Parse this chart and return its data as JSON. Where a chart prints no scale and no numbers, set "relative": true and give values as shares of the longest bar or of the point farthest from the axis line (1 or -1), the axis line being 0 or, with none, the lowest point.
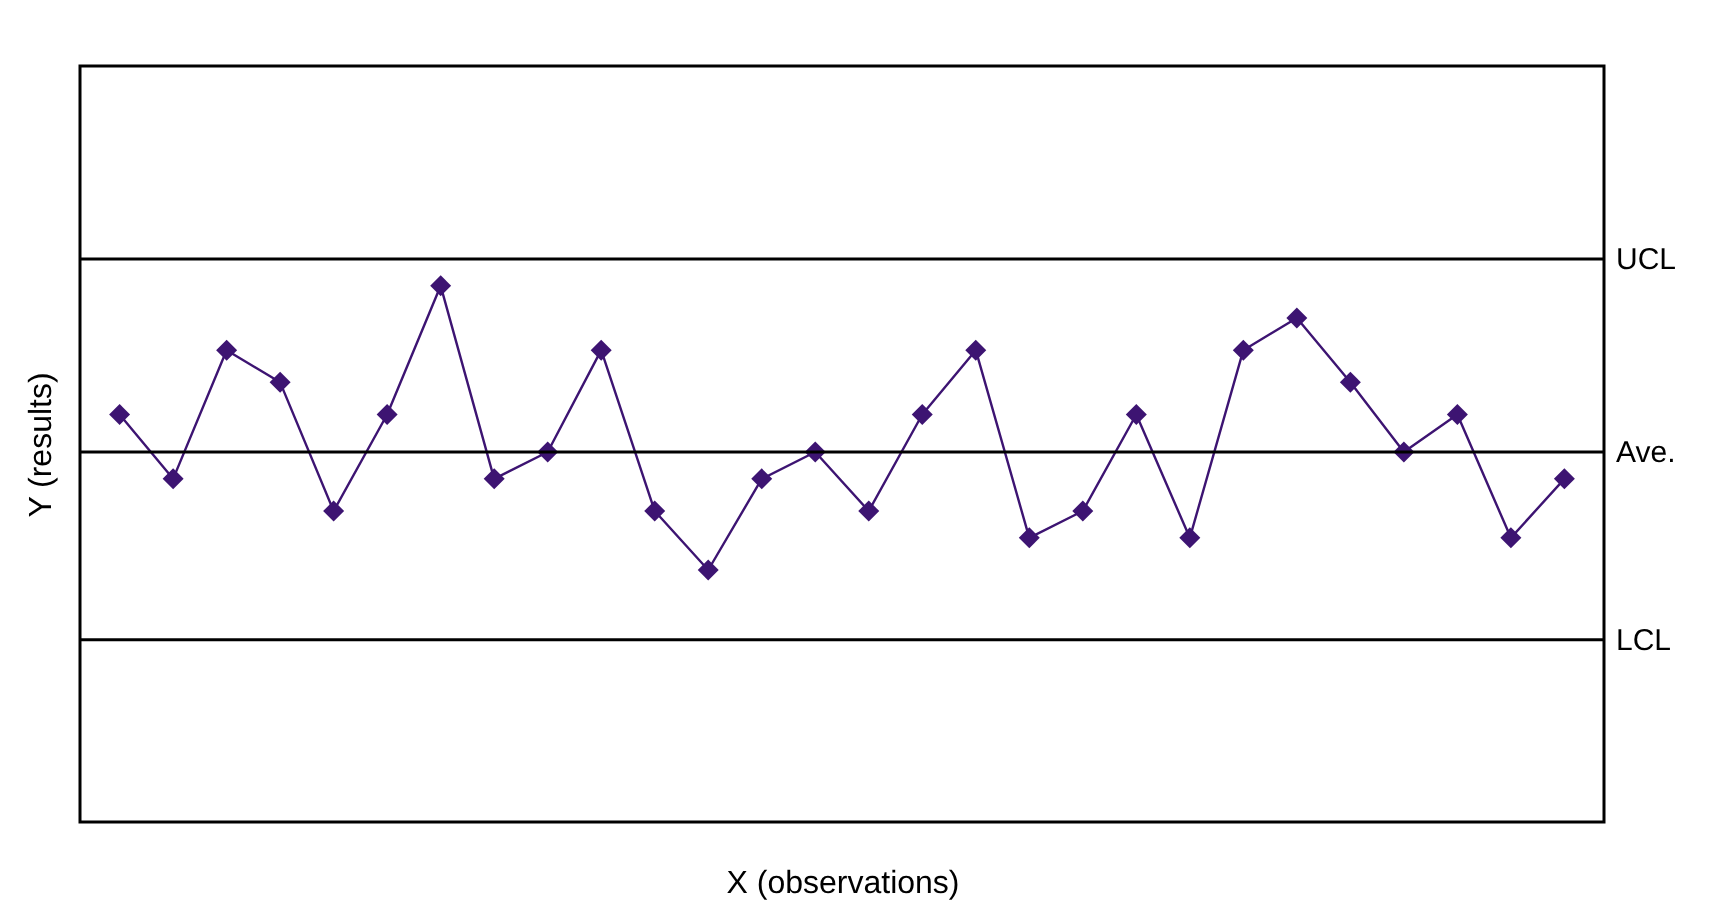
{
  "chart_data": {
    "type": "line",
    "xlabel": "X (observations)",
    "ylabel": "Y (results)",
    "relative": true,
    "ylim": [
      0,
      1.41
    ],
    "categories": [
      null,
      null,
      null,
      null,
      null,
      null,
      null,
      null,
      null,
      null,
      null,
      null,
      null,
      null,
      null,
      null,
      null,
      null,
      null,
      null,
      null,
      null,
      null,
      null,
      null,
      null,
      null,
      null
    ],
    "series": [
      {
        "color": "#3d1472",
        "values": [
          0.76,
          0.64,
          0.88,
          0.82,
          0.58,
          0.76,
          1,
          0.64,
          0.69,
          0.88,
          0.58,
          0.47,
          0.64,
          0.69,
          0.58,
          0.76,
          0.88,
          0.53,
          0.58,
          0.76,
          0.53,
          0.88,
          0.94,
          0.82,
          0.69,
          0.76,
          0.53,
          0.64
        ]
      }
    ],
    "ref_lines": [
      {
        "axis": "y",
        "value": 1.05,
        "label": "UCL",
        "color": "#000000"
      },
      {
        "axis": "y",
        "value": 0.69,
        "label": "Ave.",
        "color": "#000000"
      },
      {
        "axis": "y",
        "value": 0.34,
        "label": "LCL",
        "color": "#000000"
      }
    ],
    "marker": "diamond",
    "line_style": "solid",
    "grid": false
  }
}
